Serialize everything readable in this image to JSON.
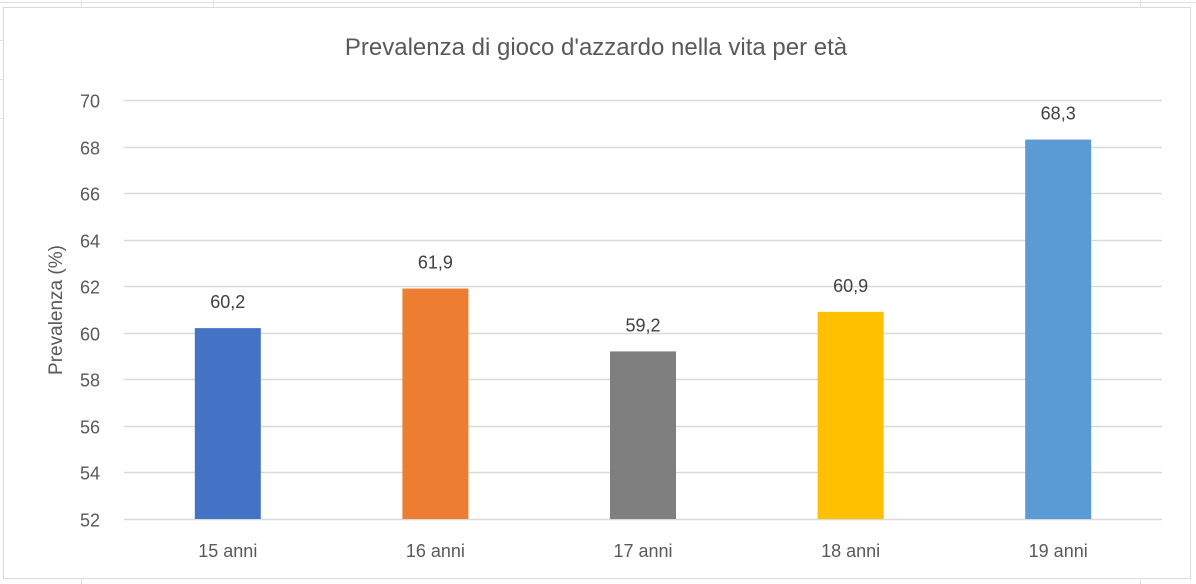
{
  "chart_data": {
    "type": "bar",
    "title": "Prevalenza di gioco d'azzardo nella vita per età",
    "xlabel": "",
    "ylabel": "Prevalenza (%)",
    "categories": [
      "15 anni",
      "16 anni",
      "17 anni",
      "18 anni",
      "19 anni"
    ],
    "values": [
      60.2,
      61.9,
      59.2,
      60.9,
      68.3
    ],
    "data_labels": [
      "60,2",
      "61,9",
      "59,2",
      "60,9",
      "68,3"
    ],
    "colors": [
      "#4472C4",
      "#ED7D31",
      "#7F7F7F",
      "#FFC000",
      "#5B9BD5"
    ],
    "ylim": [
      52,
      70
    ],
    "yticks": [
      52,
      54,
      56,
      58,
      60,
      62,
      64,
      66,
      68,
      70
    ],
    "grid": true,
    "legend": "none"
  }
}
